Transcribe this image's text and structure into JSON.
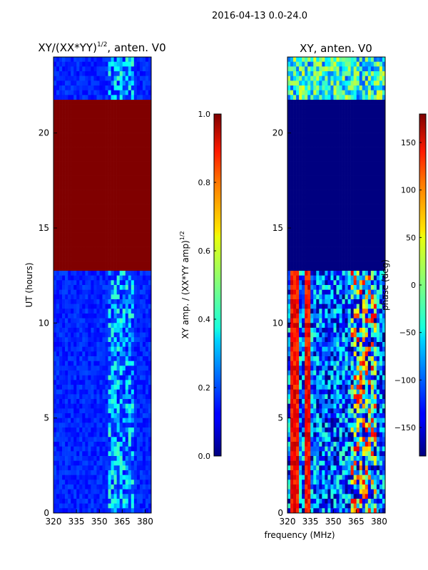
{
  "figure": {
    "suptitle": "2016-04-13 0.0-24.0"
  },
  "chart_data": [
    {
      "type": "heatmap",
      "title_main": "XY/(XX*YY)",
      "title_sup": "1/2",
      "title_rest": ", anten. V0",
      "xlabel": "",
      "ylabel": "UT (hours)",
      "xlim": [
        320,
        384
      ],
      "ylim": [
        0,
        24
      ],
      "xticks": [
        320,
        335,
        350,
        365,
        380
      ],
      "yticks": [
        0,
        5,
        10,
        15,
        20
      ],
      "colormap": "jet",
      "colorbar": {
        "label": "XY amp. / (XX*YY amp)",
        "label_sup": "1/2",
        "range": [
          0.0,
          1.0
        ],
        "ticks": [
          "0.0",
          "0.2",
          "0.4",
          "0.6",
          "0.8",
          "1.0"
        ],
        "tick_values": [
          0.0,
          0.2,
          0.4,
          0.6,
          0.8,
          1.0
        ]
      },
      "regions": [
        {
          "t0": 0,
          "t1": 12.7,
          "value_base": 0.12,
          "note": "mostly low normalized amplitude, brighter bands 355-372 MHz"
        },
        {
          "t0": 12.7,
          "t1": 21.8,
          "value_base": 1.0,
          "note": "saturated"
        },
        {
          "t0": 21.8,
          "t1": 24,
          "value_base": 0.12,
          "note": "low with brighter channels near 360-380 MHz"
        }
      ],
      "bright_band_mhz": [
        355,
        372
      ]
    },
    {
      "type": "heatmap",
      "title": "XY, anten. V0",
      "xlabel": "frequency (MHz)",
      "ylabel": "",
      "xlim": [
        320,
        384
      ],
      "ylim": [
        0,
        24
      ],
      "xticks": [
        320,
        335,
        350,
        365,
        380
      ],
      "yticks": [
        0,
        5,
        10,
        15,
        20
      ],
      "colormap": "jet",
      "colorbar": {
        "label": "phase (deg)",
        "range": [
          -180,
          180
        ],
        "ticks": [
          "150",
          "100",
          "50",
          "0",
          "−50",
          "−100",
          "−150"
        ],
        "tick_values": [
          150,
          100,
          50,
          0,
          -50,
          -100,
          -150
        ]
      },
      "regions": [
        {
          "t0": 0,
          "t1": 12.7,
          "value_base": -140,
          "note": "mixed phase with strong red stripes near 325 and 333 MHz"
        },
        {
          "t0": 12.7,
          "t1": 21.8,
          "value_base": -180,
          "note": "uniform -180"
        },
        {
          "t0": 21.8,
          "t1": 24,
          "value_base": -60,
          "note": "mixed phase"
        }
      ],
      "red_stripes_mhz": [
        325,
        333
      ]
    }
  ]
}
